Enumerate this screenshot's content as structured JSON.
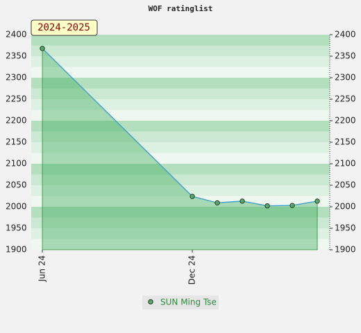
{
  "chart_data": {
    "type": "area",
    "title": "WOF ratinglist",
    "annotation": "2024-2025",
    "x": [
      "2024-06",
      "2024-12",
      "2025-01",
      "2025-02",
      "2025-03",
      "2025-04",
      "2025-05"
    ],
    "xticks": [
      {
        "value": "2024-06",
        "label": "Jun 24"
      },
      {
        "value": "2024-12",
        "label": "Dec 24"
      }
    ],
    "series": [
      {
        "name": "SUN Ming Tse",
        "color": "#4aa3c8",
        "fill": "#3caa5a",
        "marker": "#5aa86a",
        "values": [
          2368,
          2024,
          2009,
          2013,
          2002,
          2003,
          2013
        ]
      }
    ],
    "ylim": [
      1900,
      2400
    ],
    "yticks": [
      1900,
      1950,
      2000,
      2050,
      2100,
      2150,
      2200,
      2250,
      2300,
      2350,
      2400
    ],
    "grid": true
  }
}
